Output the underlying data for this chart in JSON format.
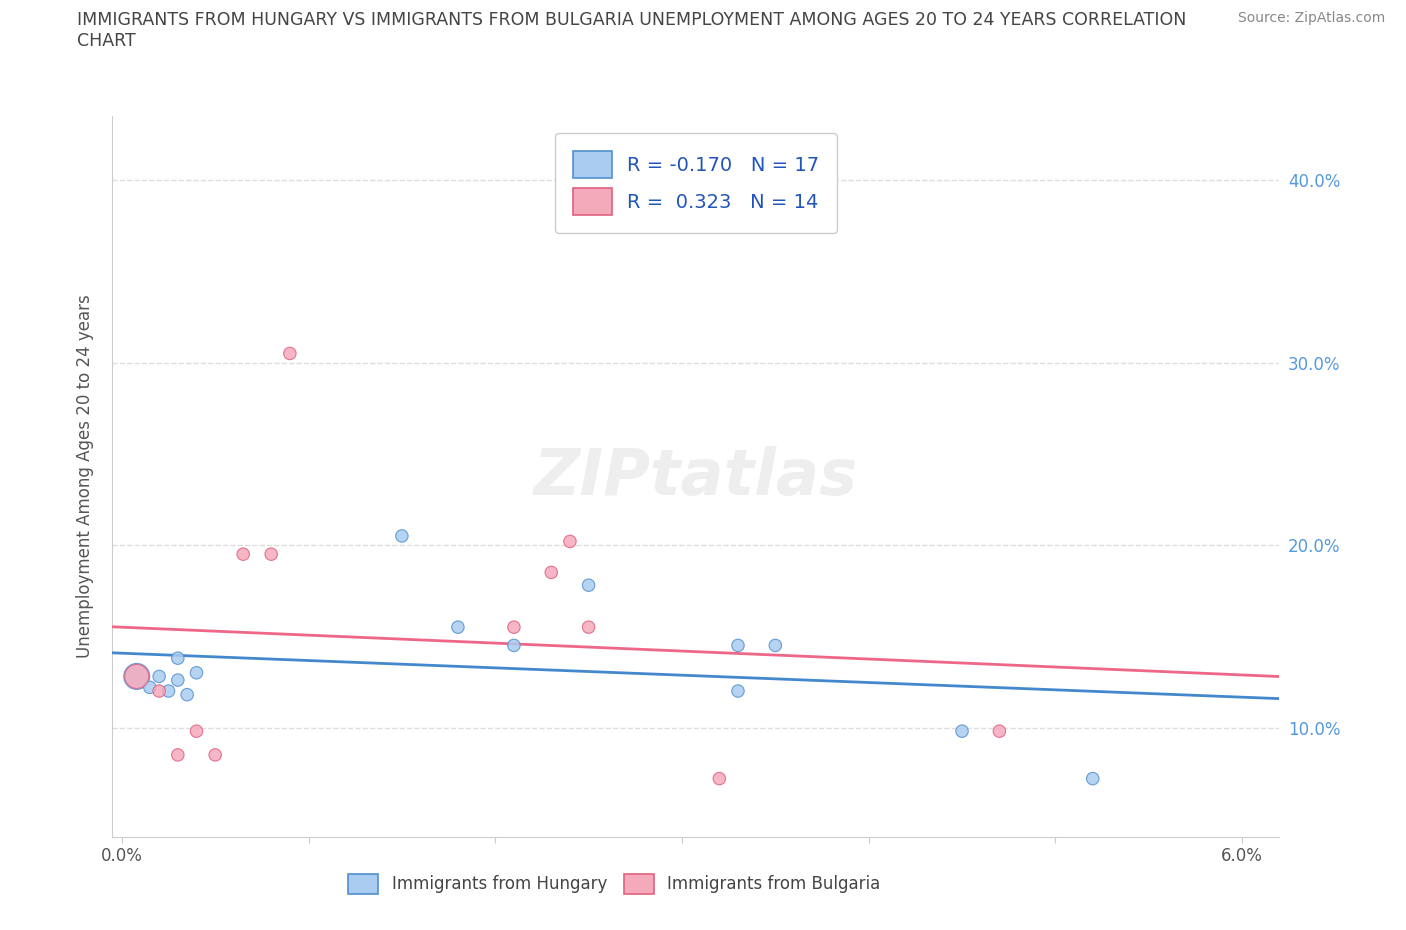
{
  "title_line1": "IMMIGRANTS FROM HUNGARY VS IMMIGRANTS FROM BULGARIA UNEMPLOYMENT AMONG AGES 20 TO 24 YEARS CORRELATION",
  "title_line2": "CHART",
  "source": "Source: ZipAtlas.com",
  "ylabel": "Unemployment Among Ages 20 to 24 years",
  "xlim": [
    -0.0005,
    0.062
  ],
  "ylim": [
    0.04,
    0.435
  ],
  "xtick_positions": [
    0.0,
    0.01,
    0.02,
    0.03,
    0.04,
    0.05,
    0.06
  ],
  "xtick_labels": [
    "0.0%",
    "",
    "",
    "",
    "",
    "",
    "6.0%"
  ],
  "ytick_positions": [
    0.1,
    0.2,
    0.3,
    0.4
  ],
  "ytick_right_labels": [
    "10.0%",
    "20.0%",
    "30.0%",
    "40.0%"
  ],
  "hungary_color": "#aaccf0",
  "hungary_edge_color": "#5090d0",
  "bulgaria_color": "#f5aabb",
  "bulgaria_edge_color": "#e06080",
  "hungary_line_color": "#4488cc",
  "bulgaria_line_color": "#ee6688",
  "right_label_color": "#5599dd",
  "hungary_R": -0.17,
  "hungary_N": 17,
  "bulgaria_R": 0.323,
  "bulgaria_N": 14,
  "hungary_x": [
    0.0008,
    0.0015,
    0.002,
    0.0025,
    0.003,
    0.003,
    0.0035,
    0.004,
    0.015,
    0.018,
    0.021,
    0.025,
    0.033,
    0.033,
    0.035,
    0.045,
    0.052
  ],
  "hungary_y": [
    0.128,
    0.122,
    0.128,
    0.12,
    0.138,
    0.126,
    0.118,
    0.13,
    0.205,
    0.155,
    0.145,
    0.178,
    0.145,
    0.12,
    0.145,
    0.098,
    0.072
  ],
  "hungary_size_base": 80,
  "hungary_size_first": 350,
  "bulgaria_x": [
    0.0008,
    0.002,
    0.003,
    0.004,
    0.005,
    0.0065,
    0.008,
    0.009,
    0.021,
    0.023,
    0.024,
    0.025,
    0.032,
    0.047
  ],
  "bulgaria_y": [
    0.128,
    0.12,
    0.085,
    0.098,
    0.085,
    0.195,
    0.195,
    0.305,
    0.155,
    0.185,
    0.202,
    0.155,
    0.072,
    0.098
  ],
  "bulgaria_size_base": 80,
  "bulgaria_size_first": 300,
  "background_color": "#ffffff",
  "grid_color": "#dddddd",
  "watermark": "ZIPtatlas",
  "legend_label_color": "#2255bb",
  "spine_color": "#cccccc"
}
